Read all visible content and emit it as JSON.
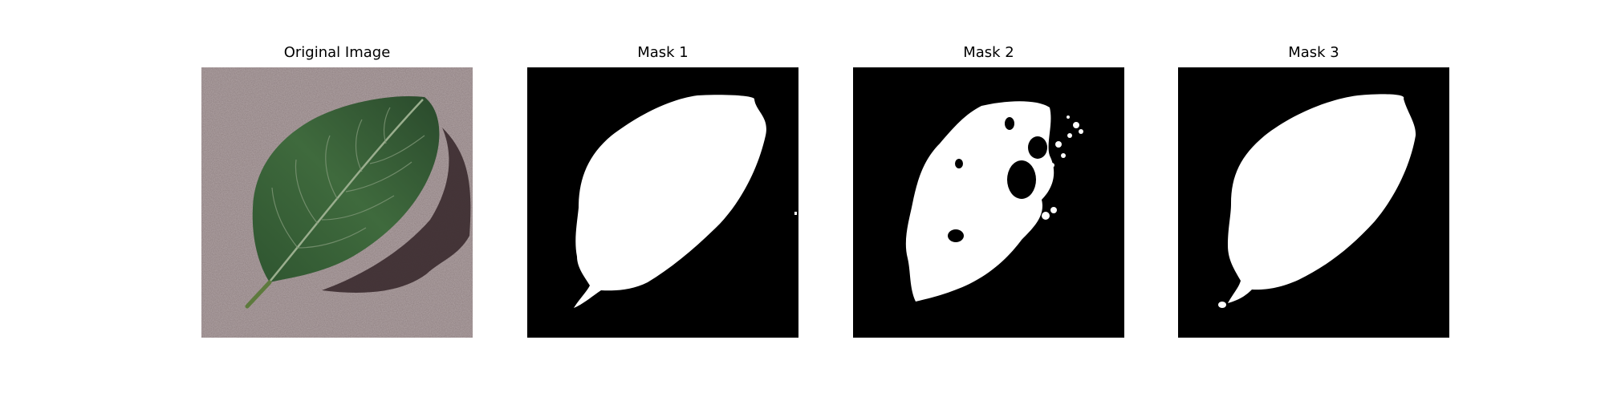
{
  "figure": {
    "panels": [
      {
        "title": "Original Image",
        "image_content": "green leaf with pale midrib and veins on a speckled mauve-gray surface, casting a dark shadow on the right"
      },
      {
        "title": "Mask 1",
        "image_content": "white filled leaf silhouette on black background"
      },
      {
        "title": "Mask 2",
        "image_content": "irregular white blob with holes on black background, partial leaf segmentation"
      },
      {
        "title": "Mask 3",
        "image_content": "white filled leaf silhouette with stem on black background"
      }
    ],
    "colors": {
      "background": "#ffffff",
      "mask_background": "#000000",
      "mask_foreground": "#ffffff",
      "surface": "#8e7f80",
      "leaf": "#3f6a3d",
      "leaf_dark": "#28452a",
      "shadow": "#3a2a2d"
    }
  }
}
